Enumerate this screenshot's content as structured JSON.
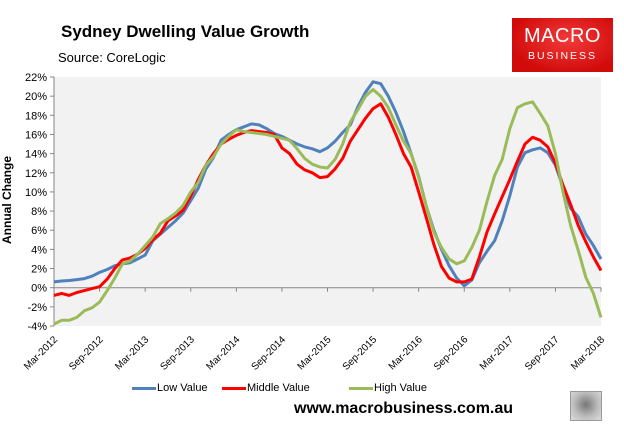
{
  "title": "Sydney Dwelling Value Growth",
  "source": "Source: CoreLogic",
  "logo": {
    "line1": "MACRO",
    "line2": "BUSINESS"
  },
  "website": "www.macrobusiness.com.au",
  "chart_data": {
    "type": "line",
    "title": "Sydney Dwelling Value Growth",
    "ylabel": "Annual Change",
    "xlabel": "",
    "ylim": [
      -4,
      22
    ],
    "yticks": [
      "22%",
      "20%",
      "18%",
      "16%",
      "14%",
      "12%",
      "10%",
      "8%",
      "6%",
      "4%",
      "2%",
      "0%",
      "-2%",
      "-4%"
    ],
    "ytick_values": [
      22,
      20,
      18,
      16,
      14,
      12,
      10,
      8,
      6,
      4,
      2,
      0,
      -2,
      -4
    ],
    "x_start": "Mar-2012",
    "x_end": "Mar-2018",
    "x_frequency": "monthly",
    "xticks": [
      "Mar-2012",
      "Sep-2012",
      "Mar-2013",
      "Sep-2013",
      "Mar-2014",
      "Sep-2014",
      "Mar-2015",
      "Sep-2015",
      "Mar-2016",
      "Sep-2016",
      "Mar-2017",
      "Sep-2017",
      "Mar-2018"
    ],
    "grid": false,
    "plot_background": "#f2f2f2",
    "legend_position": "bottom",
    "series": [
      {
        "name": "Low Value",
        "color": "#4f81bd",
        "values": [
          0.6,
          0.7,
          0.75,
          0.85,
          0.95,
          1.2,
          1.6,
          1.9,
          2.3,
          2.5,
          2.6,
          3.0,
          3.4,
          4.9,
          5.6,
          6.3,
          7.0,
          7.8,
          9.1,
          10.4,
          12.4,
          13.6,
          15.4,
          16.0,
          16.5,
          16.8,
          17.1,
          17.0,
          16.6,
          16.1,
          15.8,
          15.4,
          15.0,
          14.7,
          14.5,
          14.2,
          14.6,
          15.3,
          16.2,
          17.0,
          18.9,
          20.4,
          21.5,
          21.3,
          20.0,
          18.3,
          16.3,
          14.0,
          11.6,
          8.5,
          6.0,
          4.0,
          2.3,
          1.0,
          0.2,
          0.8,
          2.6,
          3.8,
          4.9,
          7.0,
          9.6,
          12.6,
          14.1,
          14.4,
          14.6,
          14.1,
          12.8,
          10.5,
          8.3,
          7.4,
          5.6,
          4.4,
          3.0
        ]
      },
      {
        "name": "Middle Value",
        "color": "#ff0000",
        "values": [
          -0.8,
          -0.6,
          -0.8,
          -0.5,
          -0.3,
          -0.1,
          0.1,
          0.9,
          2.0,
          2.9,
          3.1,
          3.5,
          4.1,
          5.0,
          5.7,
          7.0,
          7.5,
          8.1,
          9.6,
          11.3,
          12.8,
          14.0,
          15.0,
          15.5,
          15.9,
          16.2,
          16.4,
          16.3,
          16.2,
          16.0,
          14.6,
          14.0,
          12.9,
          12.3,
          12.0,
          11.5,
          11.6,
          12.4,
          13.5,
          15.3,
          16.5,
          17.7,
          18.7,
          19.2,
          17.8,
          16.0,
          14.0,
          12.6,
          10.0,
          7.3,
          4.5,
          2.2,
          1.0,
          0.6,
          0.6,
          0.9,
          3.2,
          5.8,
          7.7,
          9.5,
          11.3,
          13.2,
          15.0,
          15.7,
          15.4,
          14.7,
          13.0,
          10.7,
          8.7,
          6.5,
          4.8,
          3.2,
          1.8
        ]
      },
      {
        "name": "High Value",
        "color": "#9bbb59",
        "values": [
          -3.8,
          -3.4,
          -3.4,
          -3.1,
          -2.4,
          -2.1,
          -1.5,
          -0.3,
          1.0,
          2.5,
          2.8,
          3.5,
          4.4,
          5.3,
          6.7,
          7.2,
          7.8,
          8.6,
          10.0,
          11.0,
          12.8,
          13.7,
          15.0,
          15.8,
          16.5,
          16.3,
          16.2,
          16.1,
          16.0,
          15.8,
          15.6,
          15.4,
          14.5,
          13.5,
          12.9,
          12.6,
          12.5,
          13.4,
          15.0,
          17.3,
          18.6,
          20.0,
          20.7,
          20.0,
          18.8,
          17.0,
          15.3,
          14.0,
          11.5,
          8.5,
          5.8,
          4.2,
          3.0,
          2.5,
          2.8,
          4.2,
          6.0,
          9.0,
          11.7,
          13.4,
          16.6,
          18.8,
          19.2,
          19.4,
          18.2,
          16.9,
          14.0,
          10.0,
          6.5,
          3.9,
          1.1,
          -0.6,
          -3.1
        ]
      }
    ]
  }
}
